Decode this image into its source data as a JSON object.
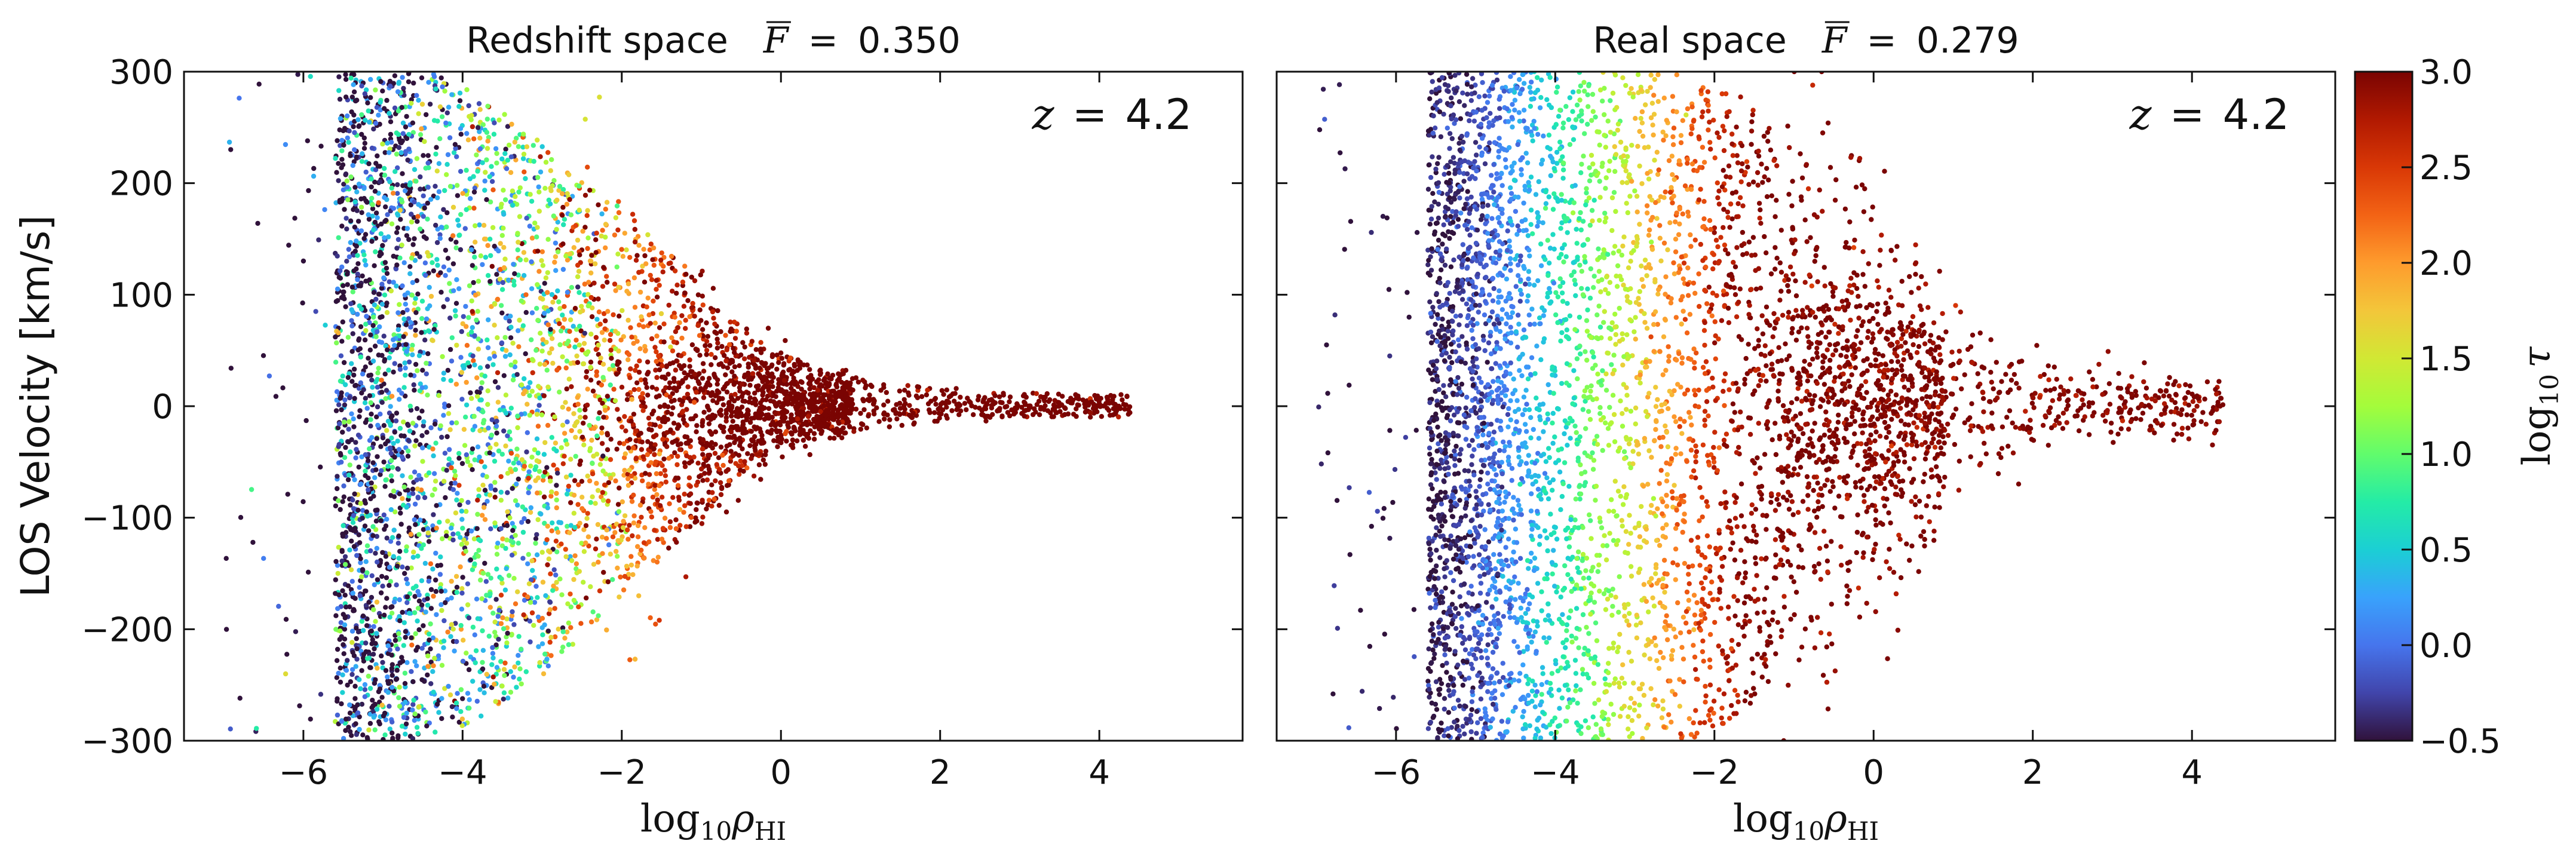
{
  "chart_data": [
    {
      "type": "scatter",
      "panel": "left",
      "title_prefix": "Redshift space",
      "mean_flux_symbol": "F",
      "mean_flux_value": "0.350",
      "annotation": "z = 4.2",
      "annotation_symbol": "z",
      "annotation_value": "4.2",
      "xlabel": "log10 ρHI",
      "ylabel": "LOS Velocity [km/s]",
      "xlim": [
        -7.5,
        5.8
      ],
      "ylim": [
        -300,
        300
      ],
      "x_ticks": [
        -6,
        -4,
        -2,
        0,
        2,
        4
      ],
      "y_ticks": [
        -300,
        -200,
        -100,
        0,
        100,
        200,
        300
      ],
      "grid": false,
      "color_variable": "log10 tau",
      "points_note": "dense scatter of simulation cells colored by optical depth",
      "x": [
        -5.6,
        -5.3,
        -5.0,
        -4.7,
        -4.4,
        -4.1,
        -3.8,
        -3.5,
        -3.2,
        -2.9,
        -2.6,
        -2.3,
        -2.0,
        -1.7,
        -1.4,
        -1.1,
        -0.8,
        -0.5,
        -0.2,
        0.1,
        0.4,
        0.8,
        1.2,
        1.8,
        2.4
      ],
      "y_spread_upper": [
        300,
        300,
        300,
        300,
        300,
        290,
        280,
        265,
        250,
        230,
        210,
        190,
        175,
        160,
        140,
        120,
        90,
        70,
        55,
        45,
        35,
        28,
        22,
        18,
        12
      ],
      "y_spread_lower": [
        -300,
        -300,
        -300,
        -300,
        -300,
        -290,
        -280,
        -270,
        -255,
        -235,
        -215,
        -195,
        -170,
        -150,
        -130,
        -110,
        -85,
        -65,
        -50,
        -40,
        -30,
        -25,
        -20,
        -15,
        -10
      ],
      "log10_tau_trend": [
        -0.5,
        -0.4,
        -0.2,
        0.0,
        0.2,
        0.4,
        0.6,
        0.8,
        1.0,
        1.3,
        1.6,
        1.9,
        2.1,
        2.4,
        2.6,
        2.8,
        2.9,
        3.0,
        3.0,
        3.0,
        3.0,
        3.0,
        3.0,
        3.0,
        3.0
      ]
    },
    {
      "type": "scatter",
      "panel": "right",
      "title_prefix": "Real space",
      "mean_flux_symbol": "F",
      "mean_flux_value": "0.279",
      "annotation": "z = 4.2",
      "annotation_symbol": "z",
      "annotation_value": "4.2",
      "xlabel": "log10 ρHI",
      "xlim": [
        -7.5,
        5.8
      ],
      "ylim": [
        -300,
        300
      ],
      "x_ticks": [
        -6,
        -4,
        -2,
        0,
        2,
        4
      ],
      "y_ticks": [
        -300,
        -200,
        -100,
        0,
        100,
        200,
        300
      ],
      "grid": false,
      "color_variable": "log10 tau",
      "points_note": "dense scatter of simulation cells colored by optical depth",
      "x": [
        -5.6,
        -5.3,
        -5.0,
        -4.7,
        -4.4,
        -4.1,
        -3.8,
        -3.5,
        -3.2,
        -2.9,
        -2.6,
        -2.3,
        -2.0,
        -1.7,
        -1.4,
        -1.1,
        -0.8,
        -0.5,
        -0.2,
        0.1,
        0.4,
        0.8,
        1.2,
        1.8,
        2.4
      ],
      "y_spread_upper": [
        300,
        300,
        300,
        300,
        300,
        300,
        300,
        300,
        300,
        300,
        300,
        300,
        290,
        280,
        260,
        240,
        215,
        190,
        165,
        140,
        120,
        95,
        75,
        50,
        30
      ],
      "y_spread_lower": [
        -300,
        -300,
        -300,
        -300,
        -300,
        -300,
        -300,
        -300,
        -300,
        -300,
        -300,
        -300,
        -290,
        -280,
        -260,
        -240,
        -215,
        -190,
        -165,
        -140,
        -120,
        -95,
        -75,
        -50,
        -30
      ],
      "log10_tau_trend": [
        -0.5,
        -0.4,
        -0.2,
        0.0,
        0.25,
        0.5,
        0.8,
        1.1,
        1.4,
        1.7,
        2.0,
        2.3,
        2.6,
        2.85,
        3.0,
        3.0,
        3.0,
        3.0,
        3.0,
        3.0,
        3.0,
        3.0,
        3.0,
        3.0,
        3.0
      ]
    },
    {
      "type": "colorbar",
      "label": "log10 τ",
      "label_base": "log",
      "label_sub": "10",
      "label_symbol": "τ",
      "range": [
        -0.5,
        3.0
      ],
      "ticks": [
        -0.5,
        0.0,
        0.5,
        1.0,
        1.5,
        2.0,
        2.5,
        3.0
      ],
      "tick_labels": [
        "−0.5",
        "0.0",
        "0.5",
        "1.0",
        "1.5",
        "2.0",
        "2.5",
        "3.0"
      ],
      "colormap": "turbo",
      "colors": [
        "#30123b",
        "#4145ab",
        "#4675ed",
        "#39a2fc",
        "#1bcfd4",
        "#24eca6",
        "#61fc6c",
        "#a4fc3b",
        "#d1e834",
        "#f3c63a",
        "#fe9b2d",
        "#f36315",
        "#d93806",
        "#b11901",
        "#7a0402"
      ]
    }
  ],
  "labels": {
    "ylabel": "LOS Velocity [km/s]",
    "xlabel_base": "log",
    "xlabel_sub": "10",
    "xlabel_rho": "ρ",
    "xlabel_rho_sub": "HI",
    "eq": "=",
    "z_symbol": "z",
    "minus": "−"
  }
}
